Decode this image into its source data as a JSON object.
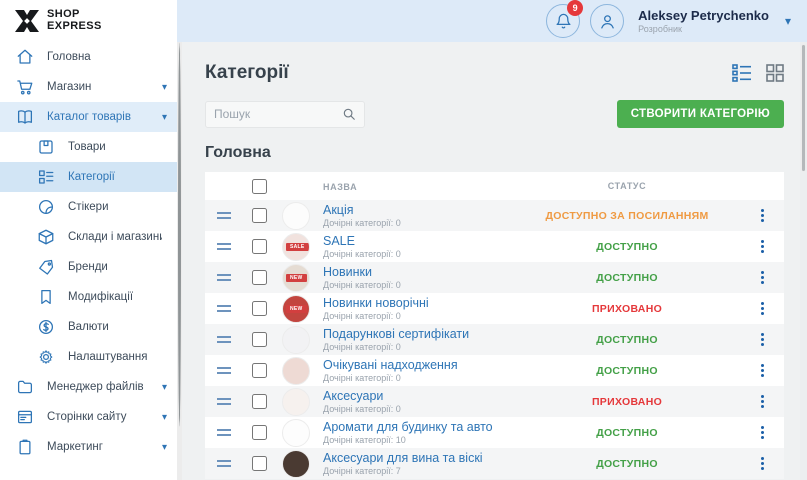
{
  "header": {
    "logo_line1": "SHOP",
    "logo_line2": "EXPRESS",
    "notification_count": "9",
    "user_name": "Aleksey Petrychenko",
    "user_role": "Розробник"
  },
  "sidebar": {
    "items": [
      {
        "label": "Головна",
        "icon": "home",
        "chevron": false,
        "sub": false,
        "active": false,
        "selected": false
      },
      {
        "label": "Магазин",
        "icon": "cart",
        "chevron": true,
        "sub": false,
        "active": false,
        "selected": false
      },
      {
        "label": "Каталог товарів",
        "icon": "catalog",
        "chevron": true,
        "sub": false,
        "active": true,
        "selected": false
      },
      {
        "label": "Товари",
        "icon": "products",
        "chevron": false,
        "sub": true,
        "active": false,
        "selected": false
      },
      {
        "label": "Категорії",
        "icon": "categories",
        "chevron": false,
        "sub": true,
        "active": true,
        "selected": true
      },
      {
        "label": "Стікери",
        "icon": "sticker",
        "chevron": false,
        "sub": true,
        "active": false,
        "selected": false
      },
      {
        "label": "Склади і магазини",
        "icon": "warehouse",
        "chevron": false,
        "sub": true,
        "active": false,
        "selected": false
      },
      {
        "label": "Бренди",
        "icon": "brand",
        "chevron": false,
        "sub": true,
        "active": false,
        "selected": false
      },
      {
        "label": "Модифікації",
        "icon": "bookmark",
        "chevron": false,
        "sub": true,
        "active": false,
        "selected": false
      },
      {
        "label": "Валюти",
        "icon": "currency",
        "chevron": false,
        "sub": true,
        "active": false,
        "selected": false
      },
      {
        "label": "Налаштування",
        "icon": "settings",
        "chevron": false,
        "sub": true,
        "active": false,
        "selected": false
      },
      {
        "label": "Менеджер файлів",
        "icon": "folder",
        "chevron": true,
        "sub": false,
        "active": false,
        "selected": false
      },
      {
        "label": "Сторінки сайту",
        "icon": "pages",
        "chevron": true,
        "sub": false,
        "active": false,
        "selected": false
      },
      {
        "label": "Маркетинг",
        "icon": "marketing",
        "chevron": true,
        "sub": false,
        "active": false,
        "selected": false
      }
    ]
  },
  "main": {
    "title": "Категорії",
    "search_placeholder": "Пошук",
    "create_button": "СТВОРИТИ КАТЕГОРІЮ",
    "section_title": "Головна",
    "table": {
      "columns": {
        "name": "НАЗВА",
        "status": "СТАТУС"
      },
      "rows": [
        {
          "name": "Акція",
          "children": "Дочірні категорії: 0",
          "status": "ДОСТУПНО ЗА ПОСИЛАННЯМ",
          "status_type": "bylink",
          "thumb_bg": "#fcfcfc",
          "thumb_label": ""
        },
        {
          "name": "SALE",
          "children": "Дочірні категорії: 0",
          "status": "ДОСТУПНО",
          "status_type": "available",
          "thumb_bg": "#f1e2de",
          "thumb_label": "SALE"
        },
        {
          "name": "Новинки",
          "children": "Дочірні категорії: 0",
          "status": "ДОСТУПНО",
          "status_type": "available",
          "thumb_bg": "#e5dcd3",
          "thumb_label": "NEW"
        },
        {
          "name": "Новинки новорічні",
          "children": "Дочірні категорії: 0",
          "status": "ПРИХОВАНО",
          "status_type": "hidden",
          "thumb_bg": "#c2453f",
          "thumb_label": "NEW"
        },
        {
          "name": "Подарункові сертифікати",
          "children": "Дочірні категорії: 0",
          "status": "ДОСТУПНО",
          "status_type": "available",
          "thumb_bg": "#f2f2f4",
          "thumb_label": ""
        },
        {
          "name": "Очікувані надходження",
          "children": "Дочірні категорії: 0",
          "status": "ДОСТУПНО",
          "status_type": "available",
          "thumb_bg": "#eedad4",
          "thumb_label": ""
        },
        {
          "name": "Аксесуари",
          "children": "Дочірні категорії: 0",
          "status": "ПРИХОВАНО",
          "status_type": "hidden",
          "thumb_bg": "#f6f1ee",
          "thumb_label": ""
        },
        {
          "name": "Аромати для будинку та авто",
          "children": "Дочірні категорії: 10",
          "status": "ДОСТУПНО",
          "status_type": "available",
          "thumb_bg": "#fdfdfd",
          "thumb_label": ""
        },
        {
          "name": "Аксесуари для вина та віскі",
          "children": "Дочірні категорії: 7",
          "status": "ДОСТУПНО",
          "status_type": "available",
          "thumb_bg": "#4a3a32",
          "thumb_label": ""
        }
      ]
    }
  },
  "colors": {
    "accent_blue": "#2e75b6",
    "header_bg": "#ddeaf8",
    "status_available": "#43a047",
    "status_hidden": "#e5383b",
    "status_bylink": "#ef9a42",
    "create_button_bg": "#4caf50",
    "badge_red": "#e5383b"
  }
}
